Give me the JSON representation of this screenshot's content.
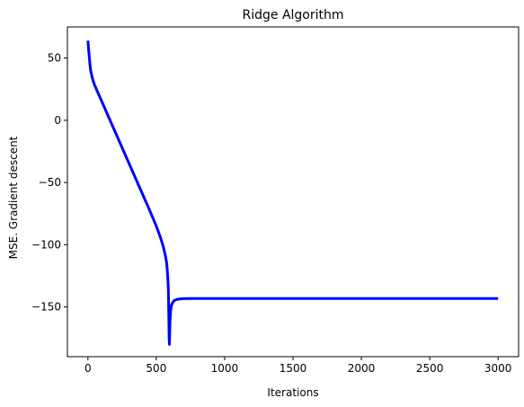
{
  "chart_data": {
    "type": "line",
    "title": "Ridge Algorithm",
    "xlabel": "Iterations",
    "ylabel": "MSE. Gradient descent",
    "xlim": [
      -150,
      3150
    ],
    "ylim": [
      -190,
      75
    ],
    "xticks": [
      0,
      500,
      1000,
      1500,
      2000,
      2500,
      3000
    ],
    "yticks": [
      -150,
      -100,
      -50,
      0,
      50
    ],
    "ytick_labels": [
      "−150",
      "−100",
      "−50",
      "0",
      "50"
    ],
    "grid": false,
    "legend": "none",
    "series": [
      {
        "color": "#0000ff",
        "x": [
          0,
          5,
          10,
          15,
          20,
          30,
          40,
          50,
          60,
          80,
          100,
          150,
          200,
          250,
          300,
          350,
          400,
          450,
          500,
          530,
          550,
          565,
          575,
          580,
          585,
          588,
          590,
          592,
          594,
          596,
          598,
          600,
          605,
          610,
          620,
          630,
          650,
          680,
          700,
          750,
          800,
          1000,
          1500,
          2000,
          2500,
          3000
        ],
        "y": [
          64,
          57,
          51,
          45,
          40,
          35,
          31,
          28,
          25.5,
          20.5,
          15.5,
          3,
          -9.5,
          -22,
          -34.5,
          -47,
          -59.5,
          -72,
          -85,
          -94,
          -101,
          -108,
          -114,
          -120,
          -128,
          -135,
          -145,
          -160,
          -175,
          -180,
          -172,
          -162,
          -153,
          -149,
          -146.5,
          -145,
          -144,
          -143.5,
          -143.3,
          -143.2,
          -143.2,
          -143.2,
          -143.2,
          -143.2,
          -143.2,
          -143.2
        ]
      }
    ]
  }
}
